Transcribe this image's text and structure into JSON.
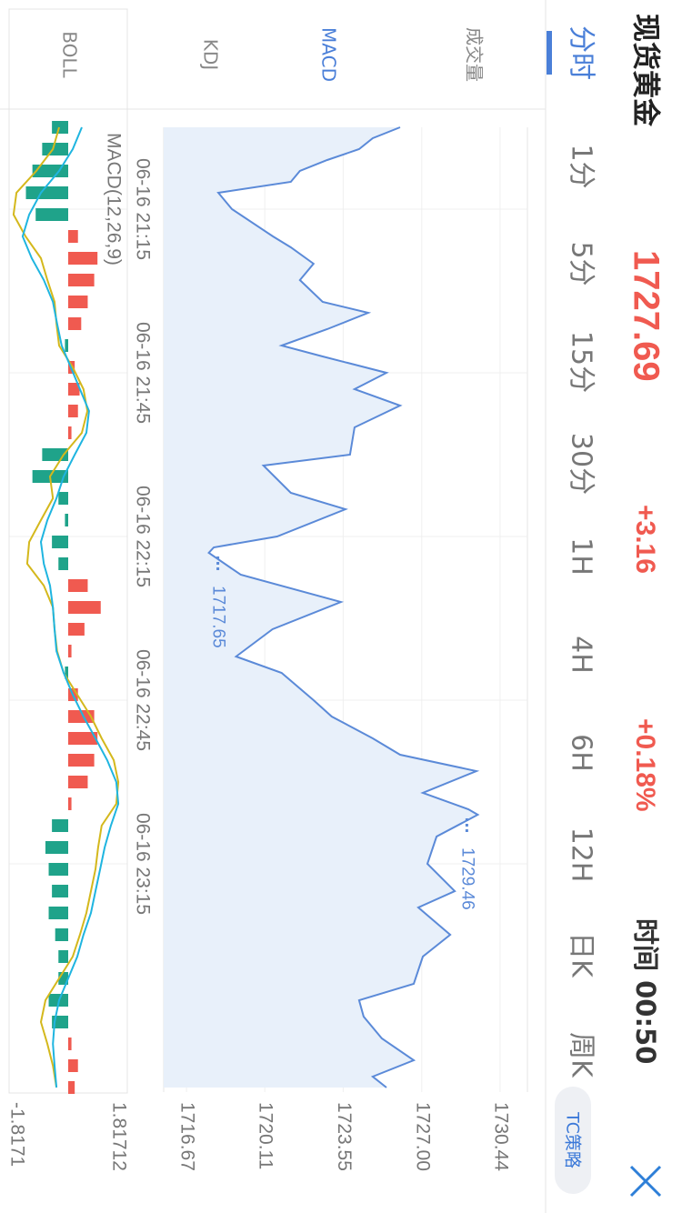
{
  "header": {
    "title": "现货黄金",
    "price": "1727.69",
    "change": "+3.16",
    "change_pct": "+0.18%",
    "time": "时间 00:50",
    "strategy_button": "TC策略"
  },
  "tabs": {
    "items": [
      "分时",
      "1分",
      "5分",
      "15分",
      "30分",
      "1H",
      "4H",
      "6H",
      "12H",
      "日K",
      "周K"
    ],
    "active": 0
  },
  "indicators": {
    "items": [
      "成交量",
      "MACD",
      "KDJ",
      "BOLL"
    ],
    "active": 1
  },
  "chart_data": [
    {
      "type": "area",
      "x": [
        "06-16 21:00",
        "06-16 21:02",
        "06-16 21:04",
        "06-16 21:06",
        "06-16 21:08",
        "06-16 21:10",
        "06-16 21:12",
        "06-16 21:15",
        "06-16 21:20",
        "06-16 21:22",
        "06-16 21:25",
        "06-16 21:28",
        "06-16 21:32",
        "06-16 21:34",
        "06-16 21:37",
        "06-16 21:40",
        "06-16 21:42",
        "06-16 21:45",
        "06-16 21:48",
        "06-16 21:51",
        "06-16 21:55",
        "06-16 22:00",
        "06-16 22:02",
        "06-16 22:07",
        "06-16 22:10",
        "06-16 22:15",
        "06-16 22:17",
        "06-16 22:18",
        "06-16 22:22",
        "06-16 22:27",
        "06-16 22:32",
        "06-16 22:37",
        "06-16 22:40",
        "06-16 22:45",
        "06-16 22:48",
        "06-16 22:52",
        "06-16 22:55",
        "06-16 22:58",
        "06-16 23:02",
        "06-16 23:05",
        "06-16 23:06",
        "06-16 23:10",
        "06-16 23:15",
        "06-16 23:20",
        "06-16 23:23",
        "06-16 23:28",
        "06-16 23:32",
        "06-16 23:37",
        "06-16 23:40",
        "06-16 23:43",
        "06-16 23:47",
        "06-16 23:51",
        "06-16 23:54",
        "06-16 23:56"
      ],
      "values": [
        1726.05,
        1724.85,
        1724.25,
        1722.85,
        1721.65,
        1721.25,
        1718.07,
        1718.67,
        1720.47,
        1721.25,
        1722.25,
        1721.65,
        1722.65,
        1724.65,
        1722.85,
        1720.85,
        1722.65,
        1725.45,
        1724.05,
        1726.05,
        1724.05,
        1723.85,
        1720.05,
        1721.25,
        1723.65,
        1720.65,
        1717.87,
        1717.65,
        1719.05,
        1723.45,
        1720.45,
        1718.85,
        1720.85,
        1722.25,
        1723.05,
        1724.85,
        1726.05,
        1729.4,
        1727.05,
        1729.05,
        1729.46,
        1727.65,
        1727.25,
        1728.45,
        1726.85,
        1728.25,
        1727.05,
        1726.65,
        1724.25,
        1724.45,
        1725.25,
        1726.65,
        1724.85,
        1725.45
      ],
      "color": "#5b8ad8",
      "fill_color": "#e8f0fa",
      "xlim": [
        "06-16 21:00",
        "06-16 23:56"
      ],
      "xticks": [
        "06-16 21:15",
        "06-16 21:45",
        "06-16 22:15",
        "06-16 22:45",
        "06-16 23:15"
      ],
      "ylim": [
        1715.67,
        1731.64
      ],
      "yticks": [
        1716.67,
        1720.11,
        1723.55,
        {
          "value": 1727,
          "label": "1727.00"
        },
        1730.44
      ],
      "grid": true,
      "annotations": [
        {
          "x": "06-16 22:18",
          "value": 1717.65
        },
        {
          "x": "06-16 23:06",
          "value": 1729.46
        }
      ]
    },
    {
      "type": "macd",
      "title": "MACD(12,26,9)",
      "x": [
        "06-16 21:00",
        "06-16 21:04",
        "06-16 21:08",
        "06-16 21:12",
        "06-16 21:16",
        "06-16 21:20",
        "06-16 21:24",
        "06-16 21:28",
        "06-16 21:32",
        "06-16 21:36",
        "06-16 21:40",
        "06-16 21:44",
        "06-16 21:48",
        "06-16 21:52",
        "06-16 21:56",
        "06-16 22:00",
        "06-16 22:04",
        "06-16 22:08",
        "06-16 22:12",
        "06-16 22:16",
        "06-16 22:20",
        "06-16 22:24",
        "06-16 22:28",
        "06-16 22:32",
        "06-16 22:36",
        "06-16 22:40",
        "06-16 22:44",
        "06-16 22:48",
        "06-16 22:52",
        "06-16 22:56",
        "06-16 23:00",
        "06-16 23:04",
        "06-16 23:08",
        "06-16 23:12",
        "06-16 23:16",
        "06-16 23:20",
        "06-16 23:24",
        "06-16 23:28",
        "06-16 23:32",
        "06-16 23:36",
        "06-16 23:40",
        "06-16 23:44",
        "06-16 23:48",
        "06-16 23:52",
        "06-16 23:56"
      ],
      "series": [
        {
          "kind": "bar",
          "up_color": "#f05a50",
          "down_color": "#1fa38a",
          "values": [
            -0.5,
            -0.8,
            -1.1,
            -1.3,
            -1.0,
            0.3,
            0.9,
            0.8,
            0.6,
            0.4,
            -0.1,
            0.2,
            0.35,
            0.3,
            0.1,
            -0.8,
            -1.1,
            -0.3,
            -0.1,
            -0.5,
            -0.3,
            0.6,
            1.0,
            0.5,
            0.1,
            -0.1,
            0.3,
            0.8,
            0.9,
            0.8,
            0.6,
            0.1,
            -0.5,
            -0.7,
            -0.6,
            -0.5,
            -0.6,
            -0.4,
            -0.3,
            -0.3,
            -0.6,
            -0.5,
            0.1,
            0.3,
            0.2
          ]
        },
        {
          "kind": "line",
          "color": "#d4b81c",
          "values": [
            -0.28,
            -0.47,
            -0.98,
            -1.59,
            -1.68,
            -1.31,
            -0.84,
            -0.64,
            -0.42,
            -0.36,
            -0.28,
            0.14,
            0.47,
            0.59,
            0.42,
            -0.14,
            -0.56,
            -0.47,
            -0.84,
            -1.2,
            -1.26,
            -0.75,
            -0.47,
            -0.42,
            -0.34,
            -0.14,
            0.28,
            0.7,
            1.03,
            1.4,
            1.54,
            1.48,
            1.03,
            0.92,
            0.84,
            0.7,
            0.56,
            0.36,
            0.14,
            -0.28,
            -0.7,
            -0.84,
            -0.64,
            -0.47,
            -0.36
          ]
        },
        {
          "kind": "line",
          "color": "#1fb5e0",
          "values": [
            0.42,
            0.14,
            -0.28,
            -0.84,
            -1.2,
            -1.4,
            -1.12,
            -0.75,
            -0.47,
            -0.34,
            -0.2,
            0.08,
            0.36,
            0.64,
            0.56,
            0.2,
            -0.14,
            -0.36,
            -0.64,
            -0.84,
            -0.75,
            -0.56,
            -0.47,
            -0.42,
            -0.36,
            -0.14,
            0.14,
            0.47,
            0.84,
            1.2,
            1.48,
            1.54,
            1.31,
            1.12,
            0.98,
            0.84,
            0.7,
            0.47,
            0.28,
            0,
            -0.28,
            -0.42,
            -0.47,
            -0.42,
            -0.36
          ]
        }
      ],
      "xlim": [
        "06-16 21:00",
        "06-16 23:56"
      ],
      "ylim": [
        -1.8171,
        1.81712
      ],
      "yticks": [
        1.81712,
        -1.8171
      ]
    }
  ]
}
